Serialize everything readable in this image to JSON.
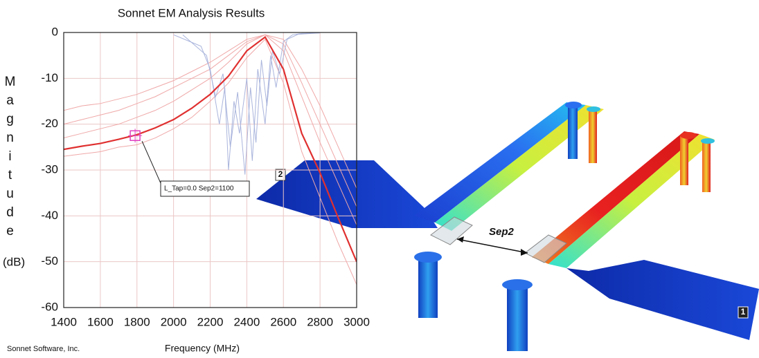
{
  "chart_data": {
    "type": "line",
    "title": "Sonnet EM Analysis Results",
    "y_label": "Magnitude",
    "y_unit": "(dB)",
    "x_label": "Frequency (MHz)",
    "footer": "Sonnet Software, Inc.",
    "x": [
      1400,
      1500,
      1600,
      1700,
      1800,
      1900,
      2000,
      2100,
      2200,
      2300,
      2400,
      2500,
      2600,
      2700,
      2800,
      2900,
      3000
    ],
    "series": [
      {
        "color": "#f0a8a8",
        "width": 1,
        "values": [
          -23,
          -22,
          -21,
          -20,
          -18.5,
          -17,
          -15,
          -12.5,
          -10,
          -6.5,
          -2.5,
          -0.5,
          -4,
          -14,
          -24,
          -33,
          -42
        ]
      },
      {
        "color": "#f0a8a8",
        "width": 1,
        "values": [
          -20,
          -19,
          -18,
          -17,
          -15.5,
          -14,
          -12,
          -10,
          -8,
          -5,
          -2,
          -0.5,
          -2.5,
          -11,
          -20,
          -29,
          -38
        ]
      },
      {
        "color": "#f0a8a8",
        "width": 1,
        "values": [
          -17,
          -16,
          -15.5,
          -14.5,
          -13.5,
          -12,
          -10.5,
          -8.5,
          -6.5,
          -4,
          -1.5,
          -0.5,
          -1.5,
          -8,
          -16,
          -25,
          -34
        ]
      },
      {
        "color": "#f0a8a8",
        "width": 1,
        "values": [
          -27,
          -26.5,
          -26,
          -25,
          -24.5,
          -23,
          -21,
          -18.5,
          -15,
          -11,
          -5.5,
          -1.5,
          -11,
          -26,
          -36,
          -46,
          -55
        ]
      },
      {
        "color": "#a9b4dc",
        "width": 1,
        "x": [
          2000,
          2150,
          2200,
          2250,
          2280,
          2300,
          2330,
          2360,
          2400,
          2430,
          2460,
          2500,
          2530,
          2560,
          2600,
          2650,
          2700,
          2800
        ],
        "values": [
          -0.5,
          -3,
          -8,
          -20,
          -12,
          -30,
          -15,
          -22,
          -10,
          -28,
          -8,
          -20,
          -5,
          -12,
          -2,
          -0.5,
          -0.2,
          -0.1
        ]
      },
      {
        "color": "#a9b4dc",
        "width": 1,
        "x": [
          2050,
          2180,
          2230,
          2270,
          2310,
          2350,
          2390,
          2420,
          2450,
          2480,
          2510,
          2540,
          2580,
          2620,
          2680,
          2800
        ],
        "values": [
          -0.5,
          -5,
          -14,
          -9,
          -25,
          -13,
          -31,
          -12,
          -24,
          -6,
          -16,
          -4,
          -9,
          -1.5,
          -0.4,
          -0.1
        ]
      },
      {
        "color": "#e03030",
        "width": 2.2,
        "values": [
          -25.5,
          -24.8,
          -24.2,
          -23.3,
          -22.3,
          -20.8,
          -19,
          -16.5,
          -13.5,
          -9.5,
          -4,
          -1,
          -8,
          -22,
          -30.6,
          -40.5,
          -50
        ]
      }
    ],
    "cursor": {
      "x": 1790,
      "y": -22.5,
      "label": "L_Tap=0.0 Sep2=1100"
    },
    "xlim": [
      1400,
      3000
    ],
    "xticks": [
      1400,
      1600,
      1800,
      2000,
      2200,
      2400,
      2600,
      2800,
      3000
    ],
    "ylim": [
      -60,
      0
    ],
    "yticks": [
      -60,
      -50,
      -40,
      -30,
      -20,
      -10,
      0
    ],
    "grid": true,
    "grid_color": "#ecc6c6",
    "annotations": {
      "port_2": "2",
      "port_1": "1",
      "separation": "Sep2"
    }
  }
}
